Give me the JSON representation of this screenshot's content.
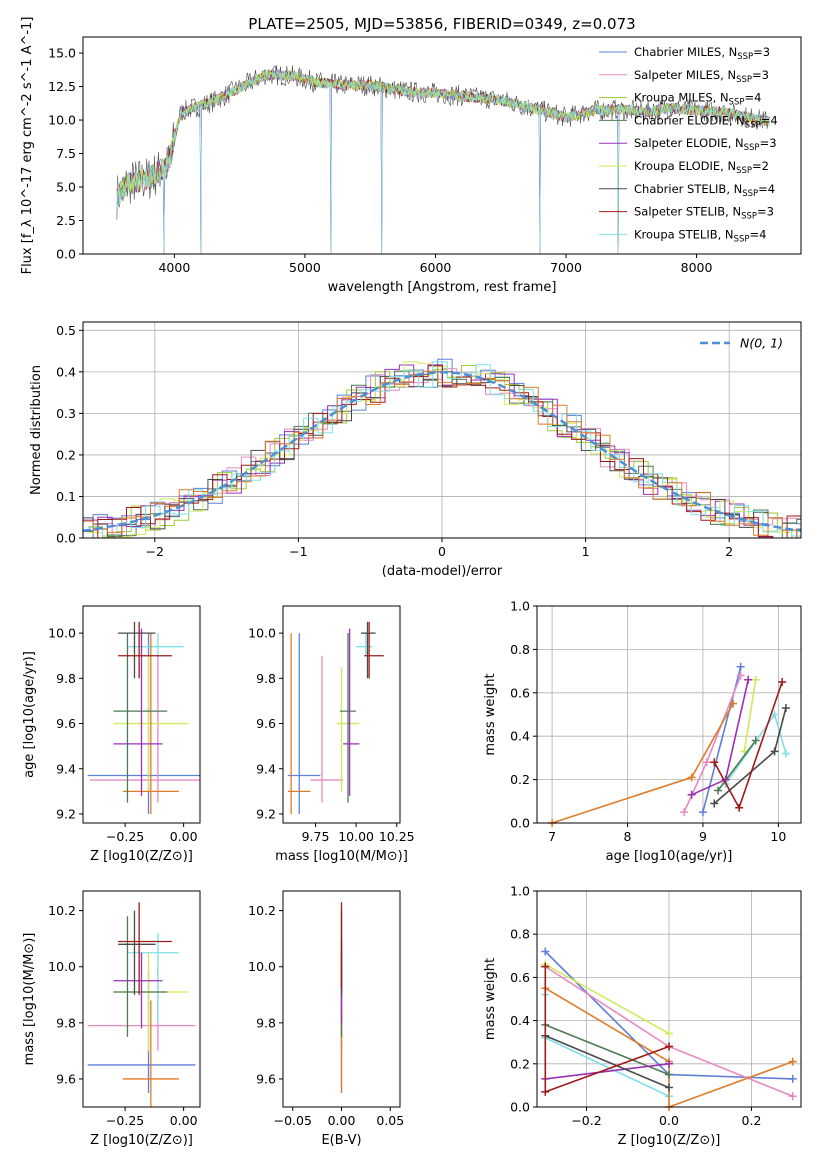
{
  "chart_data": [
    {
      "type": "line",
      "title": "PLATE=2505, MJD=53856, FIBERID=0349, z=0.073",
      "xlabel": "wavelength [Angstrom, rest frame]",
      "ylabel": "Flux [f_λ 10^-17 erg cm^-2 s^-1 A^-1]",
      "xlim": [
        3300,
        8800
      ],
      "ylim": [
        0,
        16.2
      ],
      "xticks": [
        4000,
        5000,
        6000,
        7000,
        8000
      ],
      "yticks": [
        0.0,
        2.5,
        5.0,
        7.5,
        10.0,
        12.5,
        15.0
      ],
      "legend_placement": "top-right",
      "spectrum_knots": [
        [
          3550,
          4.2
        ],
        [
          3650,
          5.3
        ],
        [
          3800,
          5.6
        ],
        [
          3950,
          6.6
        ],
        [
          4050,
          10.6
        ],
        [
          4300,
          11.4
        ],
        [
          4500,
          12.4
        ],
        [
          4700,
          13.4
        ],
        [
          4900,
          13.3
        ],
        [
          5100,
          12.8
        ],
        [
          5300,
          12.6
        ],
        [
          5500,
          12.6
        ],
        [
          5800,
          12.1
        ],
        [
          6000,
          12.0
        ],
        [
          6200,
          11.8
        ],
        [
          6500,
          11.5
        ],
        [
          6700,
          11.0
        ],
        [
          6900,
          10.5
        ],
        [
          7000,
          10.2
        ],
        [
          7200,
          10.7
        ],
        [
          7400,
          10.8
        ],
        [
          7600,
          10.6
        ],
        [
          7800,
          10.9
        ],
        [
          8000,
          10.7
        ],
        [
          8200,
          10.6
        ],
        [
          8400,
          10.2
        ],
        [
          8550,
          9.9
        ]
      ],
      "dropouts": [
        3920,
        4200,
        5200,
        5590,
        6800,
        7400
      ],
      "series": [
        {
          "name": "Chabrier MILES, N",
          "sub": "SSP",
          "suffix": "=3",
          "color": "#5b80d8"
        },
        {
          "name": "Salpeter MILES, N",
          "sub": "SSP",
          "suffix": "=3",
          "color": "#e78ac3"
        },
        {
          "name": "Kroupa MILES, N",
          "sub": "SSP",
          "suffix": "=4",
          "color": "#9acd32"
        },
        {
          "name": "Chabrier ELODIE, N",
          "sub": "SSP",
          "suffix": "=4",
          "color": "#4f7a52"
        },
        {
          "name": "Salpeter ELODIE, N",
          "sub": "SSP",
          "suffix": "=3",
          "color": "#9b30b6"
        },
        {
          "name": "Kroupa ELODIE, N",
          "sub": "SSP",
          "suffix": "=2",
          "color": "#d2e85c"
        },
        {
          "name": "Chabrier STELIB, N",
          "sub": "SSP",
          "suffix": "=4",
          "color": "#4a4a4a"
        },
        {
          "name": "Salpeter STELIB, N",
          "sub": "SSP",
          "suffix": "=3",
          "color": "#a01a1a"
        },
        {
          "name": "Kroupa STELIB, N",
          "sub": "SSP",
          "suffix": "=4",
          "color": "#80dfe6"
        }
      ]
    },
    {
      "type": "bar",
      "xlabel": "(data-model)/error",
      "ylabel": "Normed distribution",
      "xlim": [
        -2.5,
        2.5
      ],
      "ylim": [
        0,
        0.52
      ],
      "xticks": [
        -2,
        -1,
        0,
        1,
        2
      ],
      "yticks": [
        0.0,
        0.1,
        0.2,
        0.3,
        0.4,
        0.5
      ],
      "bin_width": 0.1,
      "grid": true,
      "legend_placement": "top-right",
      "legend_label": "N(0, 1)",
      "gaussian": {
        "mean": 0,
        "sigma": 1,
        "color": "#4a8fd9"
      },
      "series_colors": [
        "#5b80d8",
        "#e78ac3",
        "#9acd32",
        "#4f7a52",
        "#9b30b6",
        "#d2e85c",
        "#4a4a4a",
        "#a01a1a",
        "#80dfe6",
        "#e07b28"
      ]
    },
    {
      "type": "scatter",
      "xlabel": "Z [log10(Z/Z⊙)]",
      "ylabel": "age [log10(age/yr)]",
      "xlim": [
        -0.43,
        0.07
      ],
      "ylim": [
        9.16,
        10.12
      ],
      "xticks": [
        -0.25,
        0.0
      ],
      "yticks": [
        9.2,
        9.4,
        9.6,
        9.8,
        10.0
      ],
      "points": [
        {
          "x": -0.15,
          "y": 9.37,
          "xlo": -0.41,
          "xhi": 0.07,
          "ylo": 9.2,
          "yhi": 10.0,
          "color": "#5b80d8"
        },
        {
          "x": -0.11,
          "y": 9.35,
          "xlo": -0.4,
          "xhi": 0.07,
          "ylo": 9.25,
          "yhi": 9.9,
          "color": "#e78ac3"
        },
        {
          "x": -0.11,
          "y": 9.94,
          "xlo": -0.24,
          "xhi": 0.0,
          "ylo": 9.9,
          "yhi": 10.0,
          "color": "#80dfe6"
        },
        {
          "x": -0.15,
          "y": 9.6,
          "xlo": -0.3,
          "xhi": 0.02,
          "ylo": 9.3,
          "yhi": 9.9,
          "color": "#d2e85c"
        },
        {
          "x": -0.14,
          "y": 9.3,
          "xlo": -0.26,
          "xhi": -0.02,
          "ylo": 9.2,
          "yhi": 10.0,
          "color": "#e07b28"
        },
        {
          "x": -0.24,
          "y": 9.655,
          "xlo": -0.3,
          "xhi": -0.07,
          "ylo": 9.25,
          "yhi": 10.0,
          "color": "#4f7a52"
        },
        {
          "x": -0.18,
          "y": 9.51,
          "xlo": -0.3,
          "xhi": -0.09,
          "ylo": 9.28,
          "yhi": 10.02,
          "color": "#9b30b6"
        },
        {
          "x": -0.21,
          "y": 10.0,
          "xlo": -0.28,
          "xhi": -0.12,
          "ylo": 9.8,
          "yhi": 10.05,
          "color": "#4a4a4a"
        },
        {
          "x": -0.19,
          "y": 9.9,
          "xlo": -0.28,
          "xhi": -0.05,
          "ylo": 9.8,
          "yhi": 10.05,
          "color": "#a01a1a"
        }
      ]
    },
    {
      "type": "scatter",
      "xlabel": "mass [log10(M/M⊙)]",
      "ylabel": "",
      "xlim": [
        9.55,
        10.27
      ],
      "ylim": [
        9.16,
        10.12
      ],
      "xticks": [
        9.75,
        10.0,
        10.25
      ],
      "xticklabels": [
        "9.75",
        "10.00",
        "10.25"
      ],
      "yticks": [
        9.2,
        9.4,
        9.6,
        9.8,
        10.0
      ],
      "points": [
        {
          "x": 9.65,
          "y": 9.37,
          "xlo": 9.58,
          "xhi": 9.78,
          "ylo": 9.2,
          "yhi": 10.0,
          "color": "#5b80d8"
        },
        {
          "x": 9.79,
          "y": 9.35,
          "xlo": 9.72,
          "xhi": 9.92,
          "ylo": 9.25,
          "yhi": 9.9,
          "color": "#e78ac3"
        },
        {
          "x": 10.06,
          "y": 9.94,
          "xlo": 10.0,
          "xhi": 10.1,
          "ylo": 9.9,
          "yhi": 10.0,
          "color": "#80dfe6"
        },
        {
          "x": 9.91,
          "y": 9.6,
          "xlo": 9.88,
          "xhi": 10.02,
          "ylo": 9.3,
          "yhi": 9.85,
          "color": "#d2e85c"
        },
        {
          "x": 9.6,
          "y": 9.3,
          "xlo": 9.58,
          "xhi": 9.72,
          "ylo": 9.2,
          "yhi": 10.0,
          "color": "#e07b28"
        },
        {
          "x": 9.95,
          "y": 9.655,
          "xlo": 9.9,
          "xhi": 10.0,
          "ylo": 9.25,
          "yhi": 10.0,
          "color": "#4f7a52"
        },
        {
          "x": 9.96,
          "y": 9.51,
          "xlo": 9.92,
          "xhi": 10.02,
          "ylo": 9.28,
          "yhi": 10.02,
          "color": "#9b30b6"
        },
        {
          "x": 10.07,
          "y": 10.0,
          "xlo": 10.03,
          "xhi": 10.12,
          "ylo": 9.8,
          "yhi": 10.05,
          "color": "#4a4a4a"
        },
        {
          "x": 10.08,
          "y": 9.9,
          "xlo": 10.05,
          "xhi": 10.17,
          "ylo": 9.8,
          "yhi": 10.05,
          "color": "#a01a1a"
        }
      ]
    },
    {
      "type": "line",
      "xlabel": "age [log10(age/yr)]",
      "ylabel": "mass weight",
      "xlim": [
        6.8,
        10.3
      ],
      "ylim": [
        0,
        1.0
      ],
      "xticks": [
        7,
        8,
        9,
        10
      ],
      "yticks": [
        0.0,
        0.2,
        0.4,
        0.6,
        0.8,
        1.0
      ],
      "grid": true,
      "series": [
        {
          "color": "#5b80d8",
          "points": [
            [
              9.0,
              0.05
            ],
            [
              9.5,
              0.72
            ]
          ]
        },
        {
          "color": "#e78ac3",
          "points": [
            [
              8.75,
              0.05
            ],
            [
              9.05,
              0.28
            ],
            [
              9.5,
              0.68
            ]
          ]
        },
        {
          "color": "#80dfe6",
          "points": [
            [
              9.3,
              0.18
            ],
            [
              9.95,
              0.5
            ],
            [
              10.1,
              0.32
            ]
          ]
        },
        {
          "color": "#d2e85c",
          "points": [
            [
              9.55,
              0.33
            ],
            [
              9.7,
              0.66
            ]
          ]
        },
        {
          "color": "#e07b28",
          "points": [
            [
              7.0,
              0.0
            ],
            [
              8.85,
              0.21
            ],
            [
              9.4,
              0.55
            ]
          ]
        },
        {
          "color": "#4f7a52",
          "points": [
            [
              9.2,
              0.15
            ],
            [
              9.7,
              0.38
            ]
          ]
        },
        {
          "color": "#9b30b6",
          "points": [
            [
              8.85,
              0.13
            ],
            [
              9.3,
              0.2
            ],
            [
              9.6,
              0.66
            ]
          ]
        },
        {
          "color": "#4a4a4a",
          "points": [
            [
              9.15,
              0.09
            ],
            [
              9.95,
              0.33
            ],
            [
              10.1,
              0.53
            ]
          ]
        },
        {
          "color": "#a01a1a",
          "points": [
            [
              9.15,
              0.28
            ],
            [
              9.48,
              0.07
            ],
            [
              10.05,
              0.65
            ]
          ]
        }
      ]
    },
    {
      "type": "scatter",
      "xlabel": "Z [log10(Z/Z⊙)]",
      "ylabel": "mass [log10(M/M⊙)]",
      "xlim": [
        -0.43,
        0.07
      ],
      "ylim": [
        9.5,
        10.27
      ],
      "xticks": [
        -0.25,
        0.0
      ],
      "yticks": [
        9.6,
        9.8,
        10.0,
        10.2
      ],
      "points": [
        {
          "x": -0.15,
          "y": 9.65,
          "xlo": -0.41,
          "xhi": 0.05,
          "ylo": 9.55,
          "yhi": 9.98,
          "color": "#5b80d8"
        },
        {
          "x": -0.11,
          "y": 9.79,
          "xlo": -0.41,
          "xhi": 0.05,
          "ylo": 9.7,
          "yhi": 10.0,
          "color": "#e78ac3"
        },
        {
          "x": -0.11,
          "y": 10.05,
          "xlo": -0.24,
          "xhi": -0.02,
          "ylo": 9.8,
          "yhi": 10.12,
          "color": "#80dfe6"
        },
        {
          "x": -0.15,
          "y": 9.91,
          "xlo": -0.3,
          "xhi": 0.02,
          "ylo": 9.7,
          "yhi": 10.05,
          "color": "#d2e85c"
        },
        {
          "x": -0.14,
          "y": 9.6,
          "xlo": -0.26,
          "xhi": -0.02,
          "ylo": 9.5,
          "yhi": 9.88,
          "color": "#e07b28"
        },
        {
          "x": -0.24,
          "y": 9.91,
          "xlo": -0.3,
          "xhi": -0.07,
          "ylo": 9.75,
          "yhi": 10.18,
          "color": "#4f7a52"
        },
        {
          "x": -0.18,
          "y": 9.95,
          "xlo": -0.3,
          "xhi": -0.09,
          "ylo": 9.78,
          "yhi": 10.05,
          "color": "#9b30b6"
        },
        {
          "x": -0.21,
          "y": 10.08,
          "xlo": -0.28,
          "xhi": -0.12,
          "ylo": 9.9,
          "yhi": 10.2,
          "color": "#4a4a4a"
        },
        {
          "x": -0.19,
          "y": 10.09,
          "xlo": -0.28,
          "xhi": -0.05,
          "ylo": 9.9,
          "yhi": 10.23,
          "color": "#a01a1a"
        }
      ]
    },
    {
      "type": "scatter",
      "xlabel": "E(B-V)",
      "ylabel": "",
      "xlim": [
        -0.06,
        0.06
      ],
      "ylim": [
        9.5,
        10.27
      ],
      "xticks": [
        -0.05,
        0.0,
        0.05
      ],
      "xticklabels": [
        "−0.05",
        "0.00",
        "0.05"
      ],
      "yticks": [
        9.6,
        9.8,
        10.0,
        10.2
      ],
      "points": [
        {
          "x": 0.0,
          "y": 9.65,
          "ylo": 9.55,
          "yhi": 9.98,
          "color": "#5b80d8"
        },
        {
          "x": 0.0,
          "y": 9.8,
          "ylo": 9.7,
          "yhi": 10.0,
          "color": "#e78ac3"
        },
        {
          "x": 0.0,
          "y": 10.05,
          "ylo": 9.8,
          "yhi": 10.2,
          "color": "#80dfe6"
        },
        {
          "x": 0.0,
          "y": 9.91,
          "ylo": 9.72,
          "yhi": 10.05,
          "color": "#d2e85c"
        },
        {
          "x": 0.0,
          "y": 9.6,
          "ylo": 9.55,
          "yhi": 9.85,
          "color": "#e07b28"
        },
        {
          "x": 0.0,
          "y": 9.95,
          "ylo": 9.75,
          "yhi": 10.1,
          "color": "#4f7a52"
        },
        {
          "x": 0.0,
          "y": 9.95,
          "ylo": 9.8,
          "yhi": 10.05,
          "color": "#9b30b6"
        },
        {
          "x": 0.0,
          "y": 10.08,
          "ylo": 9.9,
          "yhi": 10.2,
          "color": "#4a4a4a"
        },
        {
          "x": 0.0,
          "y": 10.09,
          "ylo": 9.92,
          "yhi": 10.23,
          "color": "#a01a1a"
        }
      ]
    },
    {
      "type": "line",
      "xlabel": "Z [log10(Z/Z⊙)]",
      "ylabel": "mass weight",
      "xlim": [
        -0.32,
        0.32
      ],
      "ylim": [
        0,
        1.0
      ],
      "xticks": [
        -0.2,
        0.0,
        0.2
      ],
      "xticklabels": [
        "−0.2",
        "0.0",
        "0.2"
      ],
      "yticks": [
        0.0,
        0.2,
        0.4,
        0.6,
        0.8,
        1.0
      ],
      "grid": true,
      "series": [
        {
          "color": "#5b80d8",
          "points": [
            [
              -0.3,
              0.72
            ],
            [
              0.0,
              0.15
            ],
            [
              0.3,
              0.13
            ]
          ]
        },
        {
          "color": "#e78ac3",
          "points": [
            [
              -0.3,
              0.65
            ],
            [
              0.0,
              0.28
            ],
            [
              0.3,
              0.05
            ]
          ]
        },
        {
          "color": "#80dfe6",
          "points": [
            [
              -0.3,
              0.52
            ],
            [
              -0.3,
              0.32
            ],
            [
              0.0,
              0.05
            ]
          ]
        },
        {
          "color": "#d2e85c",
          "points": [
            [
              -0.3,
              0.66
            ],
            [
              0.0,
              0.34
            ]
          ]
        },
        {
          "color": "#e07b28",
          "points": [
            [
              -0.3,
              0.55
            ],
            [
              0.0,
              0.21
            ],
            [
              0.0,
              0.0
            ],
            [
              0.3,
              0.21
            ]
          ]
        },
        {
          "color": "#4f7a52",
          "points": [
            [
              -0.3,
              0.38
            ],
            [
              0.0,
              0.15
            ]
          ]
        },
        {
          "color": "#9b30b6",
          "points": [
            [
              -0.3,
              0.13
            ],
            [
              0.0,
              0.2
            ]
          ]
        },
        {
          "color": "#4a4a4a",
          "points": [
            [
              -0.3,
              0.33
            ],
            [
              0.0,
              0.09
            ]
          ]
        },
        {
          "color": "#a01a1a",
          "points": [
            [
              -0.3,
              0.65
            ],
            [
              -0.3,
              0.07
            ],
            [
              0.0,
              0.28
            ]
          ]
        }
      ]
    }
  ]
}
